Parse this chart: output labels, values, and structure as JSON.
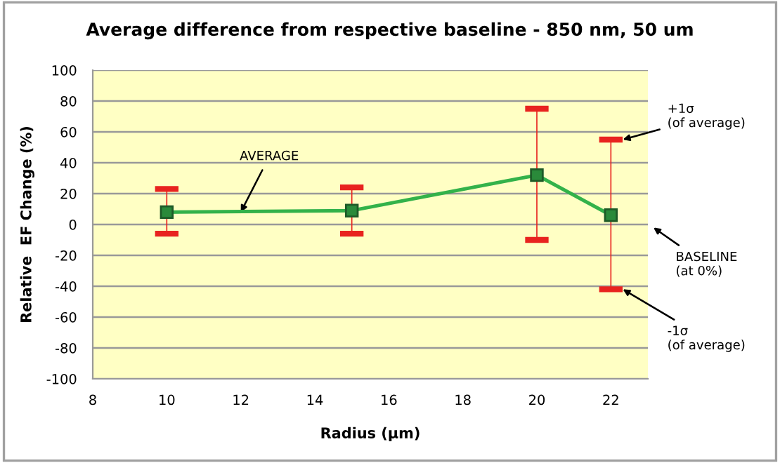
{
  "chart_data": {
    "type": "line",
    "title": "Average difference from respective baseline - 850 nm, 50 um",
    "xlabel": "Radius (µm)",
    "ylabel": "Relative  EF Change (%)",
    "x": [
      10,
      15,
      20,
      22
    ],
    "series": [
      {
        "color": "#33b24a",
        "values": [
          8,
          9,
          32,
          6
        ],
        "marker": "square",
        "errors": [
          [
            -6,
            23
          ],
          [
            -6,
            24
          ],
          [
            -10,
            75
          ],
          [
            -42,
            55
          ]
        ]
      }
    ],
    "xlim": [
      8,
      23
    ],
    "xticks": [
      8,
      10,
      12,
      14,
      16,
      18,
      20,
      22
    ],
    "ylim": [
      -100,
      100
    ],
    "yticks": [
      -100,
      -80,
      -60,
      -40,
      -20,
      0,
      20,
      40,
      60,
      80,
      100
    ],
    "grid": "y",
    "annotations": [
      {
        "text": "AVERAGE",
        "x": 12,
        "y": 8
      },
      "+1σ\n(of average)",
      "BASELINE\n(at 0%)",
      "-1σ\n(of average)"
    ]
  }
}
